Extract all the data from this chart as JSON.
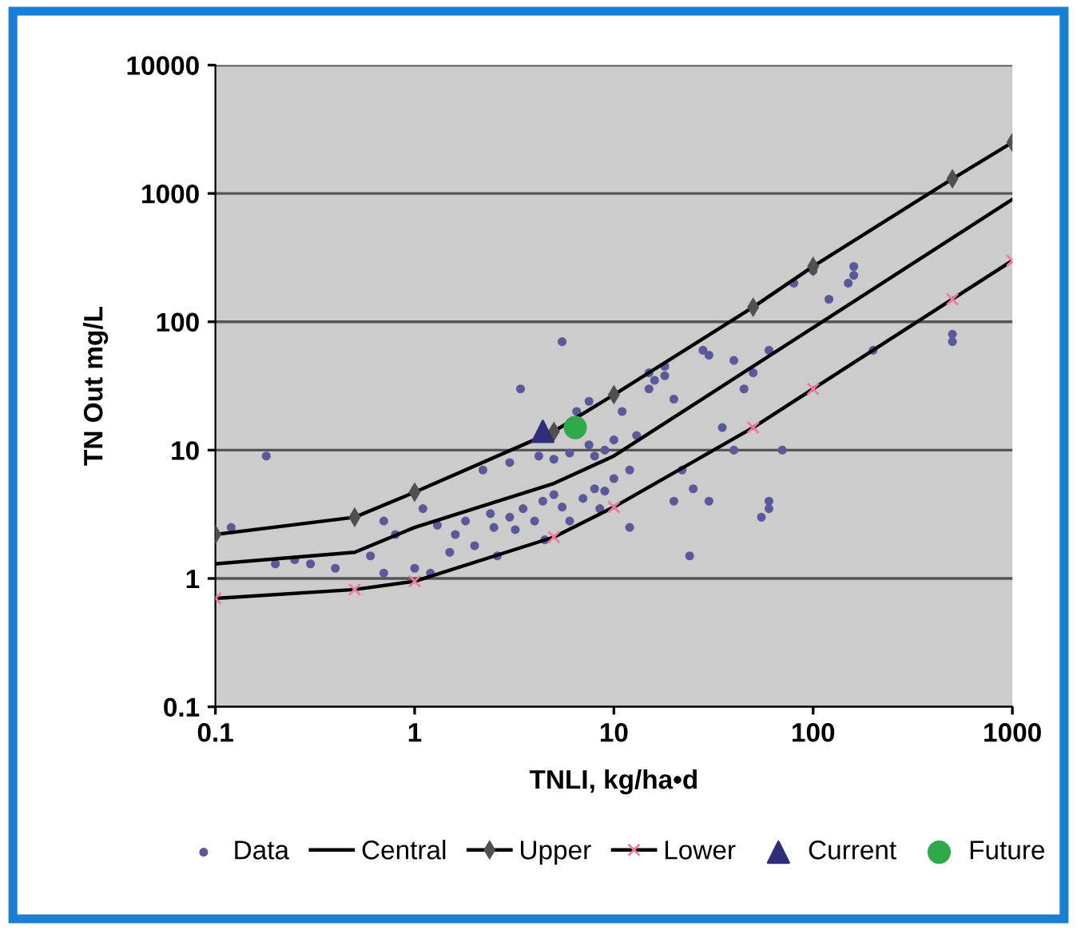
{
  "chart_data": {
    "type": "scatter",
    "xlabel": "TNLI, kg/ha•d",
    "ylabel": "TN Out mg/L",
    "log": "xy",
    "xlim": [
      0.1,
      1000
    ],
    "ylim": [
      0.1,
      10000
    ],
    "xticks": [
      0.1,
      1,
      10,
      100,
      1000
    ],
    "yticks": [
      0.1,
      1,
      10,
      100,
      1000,
      10000
    ],
    "grid": "y",
    "legend": "bottom",
    "series": [
      {
        "name": "Data",
        "color": "#5a5a9a",
        "marker": "circle",
        "x": [
          0.12,
          0.18,
          0.2,
          0.25,
          0.3,
          0.4,
          0.6,
          0.7,
          0.8,
          1.1,
          1.2,
          1.3,
          1.5,
          1.6,
          1.8,
          2,
          2.2,
          2.4,
          2.5,
          2.6,
          3,
          3,
          3.2,
          3.4,
          3.5,
          4,
          4.2,
          4.4,
          4.5,
          5,
          5,
          5.5,
          5.5,
          6,
          6,
          6.5,
          7,
          7.5,
          7.5,
          8,
          8,
          8.5,
          9,
          9,
          10,
          10,
          11,
          12,
          12,
          13,
          15,
          15,
          16,
          18,
          18,
          20,
          22,
          24,
          25,
          28,
          30,
          30,
          35,
          40,
          50,
          55,
          60,
          60,
          70,
          80,
          100,
          120,
          150,
          160,
          160,
          200,
          500,
          500,
          20,
          40,
          45,
          60,
          1,
          0.7
        ],
        "values": [
          2.5,
          9,
          1.3,
          1.4,
          1.3,
          1.2,
          1.5,
          2.8,
          2.2,
          3.5,
          1.1,
          2.6,
          1.6,
          2.2,
          2.8,
          1.8,
          7,
          3.2,
          2.5,
          1.5,
          8,
          3,
          2.4,
          30,
          3.5,
          2.8,
          9,
          4,
          2,
          8.5,
          4.5,
          70,
          3.6,
          9.5,
          2.8,
          20,
          4.2,
          24,
          11,
          5,
          9,
          3.5,
          10,
          4.8,
          12,
          6,
          20,
          7,
          2.5,
          13,
          30,
          40,
          35,
          45,
          38,
          25,
          7,
          1.5,
          5,
          60,
          4,
          55,
          15,
          10,
          40,
          3,
          3.5,
          4,
          10,
          200,
          250,
          150,
          200,
          270,
          230,
          60,
          80,
          70,
          4,
          50,
          30,
          60,
          1.2,
          1.1
        ]
      },
      {
        "name": "Central",
        "type": "line",
        "color": "#000000",
        "marker": "none",
        "x": [
          0.1,
          0.5,
          1,
          5,
          10,
          100,
          1000
        ],
        "values": [
          1.3,
          1.6,
          2.5,
          5.5,
          9,
          90,
          900
        ]
      },
      {
        "name": "Upper",
        "type": "line",
        "color": "#505050",
        "marker": "diamond",
        "x": [
          0.1,
          0.5,
          1,
          5,
          10,
          50,
          100,
          500,
          1000
        ],
        "values": [
          2.2,
          3,
          4.7,
          14,
          27,
          130,
          270,
          1300,
          2500
        ]
      },
      {
        "name": "Lower",
        "type": "line",
        "color": "#f07aa0",
        "marker": "cross",
        "x": [
          0.1,
          0.5,
          1,
          5,
          10,
          50,
          100,
          500,
          1000
        ],
        "values": [
          0.7,
          0.82,
          0.95,
          2.1,
          3.6,
          15,
          30,
          150,
          300
        ]
      },
      {
        "name": "Current",
        "color": "#2e2e7a",
        "marker": "triangle",
        "x": [
          4.4
        ],
        "values": [
          14
        ]
      },
      {
        "name": "Future",
        "color": "#2eaa4a",
        "marker": "circle",
        "x": [
          6.4
        ],
        "values": [
          15
        ]
      }
    ]
  }
}
